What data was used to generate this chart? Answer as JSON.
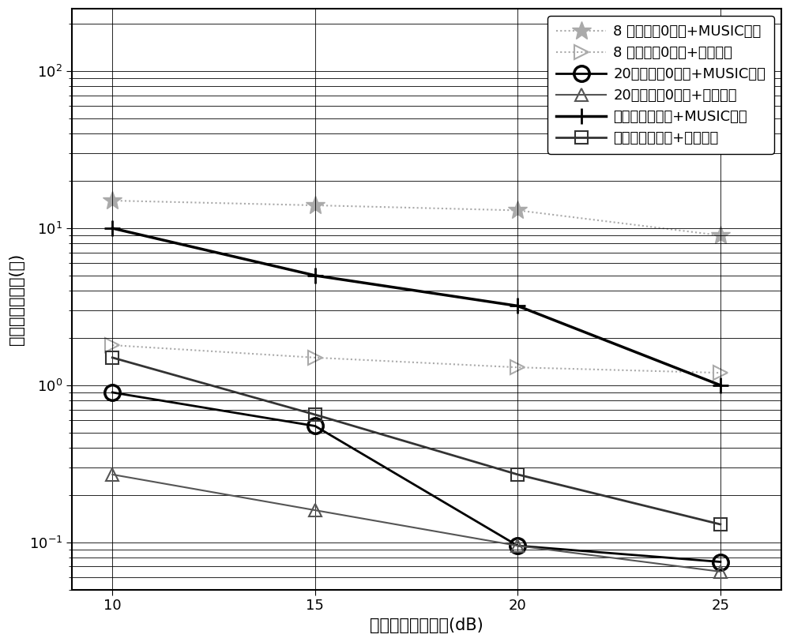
{
  "x": [
    10,
    15,
    20,
    25
  ],
  "series": [
    {
      "label": "8 阵元均剸0线阵+MUSIC方法",
      "values": [
        15.0,
        14.0,
        13.0,
        9.0
      ],
      "color": "#aaaaaa",
      "linestyle": "dotted",
      "marker": "*",
      "markersize": 18,
      "linewidth": 1.5,
      "zorder": 2,
      "mfc": "#aaaaaa",
      "mew": 1.0
    },
    {
      "label": "8 阵元均剸0线阵+所提方法",
      "values": [
        1.8,
        1.5,
        1.3,
        1.2
      ],
      "color": "#aaaaaa",
      "linestyle": "dotted",
      "marker": ">",
      "markersize": 13,
      "linewidth": 1.5,
      "zorder": 2,
      "mfc": "none",
      "mew": 1.5
    },
    {
      "label": "20阵元均剸0线阵+MUSIC算法",
      "values": [
        0.9,
        0.55,
        0.095,
        0.075
      ],
      "color": "#000000",
      "linestyle": "solid",
      "marker": "o",
      "markersize": 14,
      "linewidth": 2.0,
      "zorder": 3,
      "mfc": "none",
      "mew": 2.5
    },
    {
      "label": "20阵元均剸0线阵+所提方法",
      "values": [
        0.27,
        0.16,
        0.095,
        0.065
      ],
      "color": "#555555",
      "linestyle": "solid",
      "marker": "^",
      "markersize": 12,
      "linewidth": 1.5,
      "zorder": 3,
      "mfc": "none",
      "mew": 1.5
    },
    {
      "label": "所提分布式阵列+MUSIC算法",
      "values": [
        10.0,
        5.0,
        3.2,
        1.0
      ],
      "color": "#000000",
      "linestyle": "solid",
      "marker": "+",
      "markersize": 14,
      "linewidth": 2.5,
      "zorder": 3,
      "mfc": "#000000",
      "mew": 2.0
    },
    {
      "label": "所提分布式阵列+所提方法",
      "values": [
        1.5,
        0.65,
        0.27,
        0.13
      ],
      "color": "#333333",
      "linestyle": "solid",
      "marker": "s",
      "markersize": 11,
      "linewidth": 2.0,
      "zorder": 3,
      "mfc": "none",
      "mew": 1.5
    }
  ],
  "xlabel": "相干积累后信噪比(dB)",
  "ylabel": "测角均方根误差(度)",
  "xlim": [
    9.0,
    26.5
  ],
  "xticks": [
    10,
    15,
    20,
    25
  ],
  "ymin": 0.05,
  "ymax": 250,
  "legend_fontsize": 13,
  "axis_fontsize": 15,
  "tick_fontsize": 13,
  "figure_facecolor": "#ffffff",
  "grid_color": "#000000",
  "grid_linewidth": 0.6
}
